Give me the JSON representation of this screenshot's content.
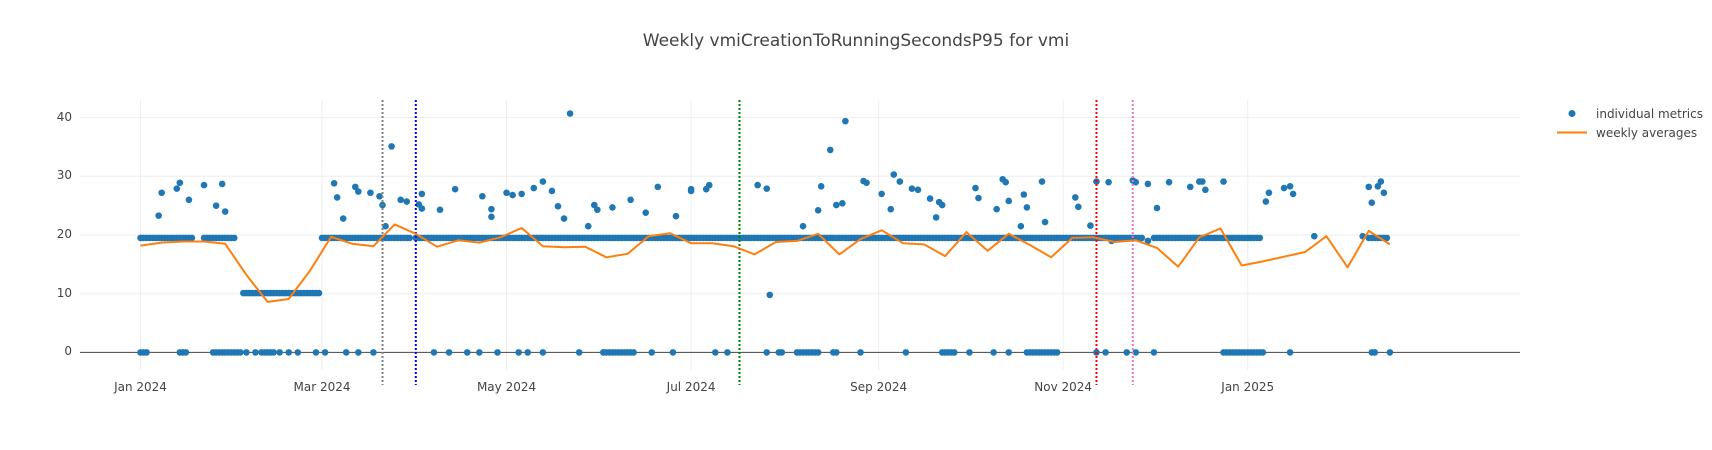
{
  "chart_data": {
    "type": "scatter",
    "title": "Weekly vmiCreationToRunningSecondsP95 for vmi",
    "xlabel": "",
    "ylabel": "",
    "xlim": [
      "2023-12-12",
      "2025-04-01"
    ],
    "ylim": [
      -3,
      43
    ],
    "grid": true,
    "legend_position": "top-right",
    "x_ticks": [
      "2024-01-01",
      "2024-03-01",
      "2024-05-01",
      "2024-07-01",
      "2024-09-01",
      "2024-11-01",
      "2025-01-01"
    ],
    "x_tick_labels": [
      "Jan 2024",
      "Mar 2024",
      "May 2024",
      "Jul 2024",
      "Sep 2024",
      "Nov 2024",
      "Jan 2025"
    ],
    "y_ticks": [
      0,
      10,
      20,
      30,
      40
    ],
    "y_tick_labels": [
      "0",
      "10",
      "20",
      "30",
      "40"
    ],
    "vertical_lines": [
      {
        "x": "2024-03-21",
        "color": "#7f7f7f"
      },
      {
        "x": "2024-04-01",
        "color": "#0000ff"
      },
      {
        "x": "2024-07-17",
        "color": "#008000"
      },
      {
        "x": "2024-11-12",
        "color": "#ff0000"
      },
      {
        "x": "2024-11-24",
        "color": "#e377c2"
      }
    ],
    "series": [
      {
        "name": "individual metrics",
        "kind": "markers",
        "color": "#1f77b4",
        "bands": [
          {
            "y": 19.5,
            "ranges": [
              [
                "2024-01-01",
                "2024-01-18"
              ],
              [
                "2024-01-22",
                "2024-02-01"
              ],
              [
                "2024-03-01",
                "2024-03-30"
              ],
              [
                "2024-04-01",
                "2024-11-27"
              ],
              [
                "2024-12-01",
                "2025-01-05"
              ],
              [
                "2025-02-10",
                "2025-02-16"
              ]
            ]
          },
          {
            "y": 10.1,
            "ranges": [
              [
                "2024-02-04",
                "2024-02-29"
              ]
            ]
          },
          {
            "y": 0.0,
            "ranges": [
              [
                "2024-01-01",
                "2024-01-03"
              ],
              [
                "2024-01-14",
                "2024-01-16"
              ],
              [
                "2024-01-25",
                "2024-02-03"
              ],
              [
                "2024-02-10",
                "2024-02-14"
              ],
              [
                "2024-06-02",
                "2024-06-12"
              ],
              [
                "2024-08-05",
                "2024-08-12"
              ],
              [
                "2024-09-22",
                "2024-09-26"
              ],
              [
                "2024-10-20",
                "2024-10-30"
              ],
              [
                "2024-12-24",
                "2025-01-06"
              ]
            ]
          }
        ],
        "points": [
          [
            "2024-01-07",
            23.3
          ],
          [
            "2024-01-08",
            27.2
          ],
          [
            "2024-01-13",
            27.9
          ],
          [
            "2024-01-14",
            28.9
          ],
          [
            "2024-01-17",
            26.0
          ],
          [
            "2024-01-22",
            28.5
          ],
          [
            "2024-01-26",
            25.0
          ],
          [
            "2024-01-28",
            28.7
          ],
          [
            "2024-01-29",
            24.0
          ],
          [
            "2024-02-05",
            0.0
          ],
          [
            "2024-02-08",
            0.0
          ],
          [
            "2024-02-16",
            0.0
          ],
          [
            "2024-02-19",
            0.0
          ],
          [
            "2024-02-22",
            0.0
          ],
          [
            "2024-02-28",
            0.0
          ],
          [
            "2024-03-02",
            0.0
          ],
          [
            "2024-03-09",
            0.0
          ],
          [
            "2024-03-13",
            0.0
          ],
          [
            "2024-03-18",
            0.0
          ],
          [
            "2024-03-05",
            28.8
          ],
          [
            "2024-03-06",
            26.4
          ],
          [
            "2024-03-08",
            22.8
          ],
          [
            "2024-03-12",
            28.2
          ],
          [
            "2024-03-13",
            27.4
          ],
          [
            "2024-03-17",
            27.2
          ],
          [
            "2024-03-20",
            26.6
          ],
          [
            "2024-03-21",
            25.1
          ],
          [
            "2024-03-22",
            21.5
          ],
          [
            "2024-03-24",
            35.1
          ],
          [
            "2024-03-27",
            26.0
          ],
          [
            "2024-03-29",
            25.7
          ],
          [
            "2024-04-02",
            25.2
          ],
          [
            "2024-04-03",
            24.5
          ],
          [
            "2024-04-03",
            27.0
          ],
          [
            "2024-04-09",
            24.3
          ],
          [
            "2024-04-14",
            27.8
          ],
          [
            "2024-04-23",
            26.6
          ],
          [
            "2024-04-26",
            23.1
          ],
          [
            "2024-04-26",
            24.4
          ],
          [
            "2024-05-01",
            27.2
          ],
          [
            "2024-05-03",
            26.8
          ],
          [
            "2024-05-06",
            27.0
          ],
          [
            "2024-05-10",
            28.0
          ],
          [
            "2024-05-13",
            29.1
          ],
          [
            "2024-05-16",
            27.5
          ],
          [
            "2024-05-18",
            24.9
          ],
          [
            "2024-05-20",
            22.8
          ],
          [
            "2024-05-22",
            40.7
          ],
          [
            "2024-05-28",
            21.5
          ],
          [
            "2024-05-30",
            25.1
          ],
          [
            "2024-05-31",
            24.3
          ],
          [
            "2024-06-05",
            24.7
          ],
          [
            "2024-06-11",
            26.0
          ],
          [
            "2024-06-16",
            23.8
          ],
          [
            "2024-06-20",
            28.2
          ],
          [
            "2024-06-26",
            23.2
          ],
          [
            "2024-07-01",
            27.5
          ],
          [
            "2024-07-01",
            27.8
          ],
          [
            "2024-07-06",
            27.8
          ],
          [
            "2024-07-07",
            28.5
          ],
          [
            "2024-07-23",
            28.5
          ],
          [
            "2024-07-26",
            27.9
          ],
          [
            "2024-07-27",
            9.8
          ],
          [
            "2024-08-07",
            21.5
          ],
          [
            "2024-08-12",
            24.2
          ],
          [
            "2024-08-13",
            28.3
          ],
          [
            "2024-08-16",
            34.5
          ],
          [
            "2024-08-18",
            25.1
          ],
          [
            "2024-08-20",
            25.4
          ],
          [
            "2024-08-21",
            39.4
          ],
          [
            "2024-08-27",
            29.2
          ],
          [
            "2024-08-28",
            28.9
          ],
          [
            "2024-09-02",
            27.0
          ],
          [
            "2024-09-05",
            24.4
          ],
          [
            "2024-09-06",
            30.3
          ],
          [
            "2024-09-08",
            29.1
          ],
          [
            "2024-09-12",
            27.9
          ],
          [
            "2024-09-14",
            27.7
          ],
          [
            "2024-09-18",
            26.2
          ],
          [
            "2024-09-20",
            23.0
          ],
          [
            "2024-09-21",
            25.6
          ],
          [
            "2024-09-22",
            25.1
          ],
          [
            "2024-10-03",
            28.0
          ],
          [
            "2024-10-04",
            26.3
          ],
          [
            "2024-10-10",
            24.4
          ],
          [
            "2024-10-12",
            29.5
          ],
          [
            "2024-10-13",
            29.0
          ],
          [
            "2024-10-14",
            25.8
          ],
          [
            "2024-10-18",
            21.5
          ],
          [
            "2024-10-19",
            26.9
          ],
          [
            "2024-10-20",
            24.7
          ],
          [
            "2024-10-25",
            29.1
          ],
          [
            "2024-10-26",
            22.2
          ],
          [
            "2024-11-05",
            26.4
          ],
          [
            "2024-11-06",
            24.8
          ],
          [
            "2024-11-10",
            21.6
          ],
          [
            "2024-11-12",
            29.1
          ],
          [
            "2024-11-16",
            29.0
          ],
          [
            "2024-11-24",
            29.3
          ],
          [
            "2024-11-25",
            29.0
          ],
          [
            "2024-11-29",
            28.7
          ],
          [
            "2024-12-02",
            24.6
          ],
          [
            "2024-12-06",
            29.0
          ],
          [
            "2024-12-13",
            28.2
          ],
          [
            "2024-12-16",
            29.1
          ],
          [
            "2024-12-17",
            29.1
          ],
          [
            "2024-12-18",
            27.7
          ],
          [
            "2024-12-24",
            29.1
          ],
          [
            "2025-01-07",
            25.7
          ],
          [
            "2025-01-08",
            27.2
          ],
          [
            "2025-01-13",
            28.0
          ],
          [
            "2025-01-15",
            28.3
          ],
          [
            "2025-01-16",
            27.0
          ],
          [
            "2025-02-10",
            28.2
          ],
          [
            "2025-02-11",
            25.5
          ],
          [
            "2025-02-13",
            28.3
          ],
          [
            "2025-02-14",
            29.1
          ],
          [
            "2025-02-15",
            27.2
          ],
          [
            "2025-02-08",
            19.8
          ],
          [
            "2024-11-17",
            19.0
          ],
          [
            "2024-11-29",
            19.0
          ],
          [
            "2025-01-23",
            19.8
          ],
          [
            "2024-04-07",
            0.0
          ],
          [
            "2024-04-12",
            0.0
          ],
          [
            "2024-04-18",
            0.0
          ],
          [
            "2024-04-22",
            0.0
          ],
          [
            "2024-04-28",
            0.0
          ],
          [
            "2024-05-05",
            0.0
          ],
          [
            "2024-05-08",
            0.0
          ],
          [
            "2024-05-13",
            0.0
          ],
          [
            "2024-05-25",
            0.0
          ],
          [
            "2024-06-02",
            0.0
          ],
          [
            "2024-06-18",
            0.0
          ],
          [
            "2024-06-25",
            0.0
          ],
          [
            "2024-07-09",
            0.0
          ],
          [
            "2024-07-13",
            0.0
          ],
          [
            "2024-07-26",
            0.0
          ],
          [
            "2024-07-30",
            0.0
          ],
          [
            "2024-07-31",
            0.0
          ],
          [
            "2024-08-17",
            0.0
          ],
          [
            "2024-08-18",
            0.0
          ],
          [
            "2024-08-26",
            0.0
          ],
          [
            "2024-09-10",
            0.0
          ],
          [
            "2024-10-01",
            0.0
          ],
          [
            "2024-10-09",
            0.0
          ],
          [
            "2024-10-14",
            0.0
          ],
          [
            "2024-11-12",
            0.0
          ],
          [
            "2024-11-15",
            0.0
          ],
          [
            "2024-11-22",
            0.0
          ],
          [
            "2024-11-25",
            0.0
          ],
          [
            "2024-12-01",
            0.0
          ],
          [
            "2025-01-15",
            0.0
          ],
          [
            "2025-02-11",
            0.0
          ],
          [
            "2025-02-12",
            0.0
          ],
          [
            "2025-02-17",
            0.0
          ]
        ]
      },
      {
        "name": "weekly averages",
        "kind": "line",
        "color": "#ff7f0e",
        "x": [
          "2024-01-01",
          "2024-01-08",
          "2024-01-15",
          "2024-01-22",
          "2024-01-29",
          "2024-02-05",
          "2024-02-12",
          "2024-02-19",
          "2024-02-26",
          "2024-03-04",
          "2024-03-11",
          "2024-03-18",
          "2024-03-25",
          "2024-04-01",
          "2024-04-08",
          "2024-04-15",
          "2024-04-22",
          "2024-04-29",
          "2024-05-06",
          "2024-05-13",
          "2024-05-20",
          "2024-05-27",
          "2024-06-03",
          "2024-06-10",
          "2024-06-17",
          "2024-06-24",
          "2024-07-01",
          "2024-07-08",
          "2024-07-15",
          "2024-07-22",
          "2024-07-29",
          "2024-08-05",
          "2024-08-12",
          "2024-08-19",
          "2024-08-26",
          "2024-09-02",
          "2024-09-09",
          "2024-09-16",
          "2024-09-23",
          "2024-09-30",
          "2024-10-07",
          "2024-10-14",
          "2024-10-21",
          "2024-10-28",
          "2024-11-04",
          "2024-11-11",
          "2024-11-18",
          "2024-11-25",
          "2024-12-02",
          "2024-12-09",
          "2024-12-16",
          "2024-12-23",
          "2024-12-30",
          "2025-01-06",
          "2025-01-13",
          "2025-01-20",
          "2025-01-27",
          "2025-02-03",
          "2025-02-10",
          "2025-02-17"
        ],
        "y": [
          18.2,
          18.7,
          18.9,
          18.9,
          18.5,
          13.2,
          8.6,
          9.1,
          13.9,
          19.7,
          18.5,
          18.1,
          21.8,
          20.2,
          18.0,
          19.1,
          18.7,
          19.6,
          21.2,
          18.1,
          17.9,
          18.0,
          16.2,
          16.8,
          19.8,
          20.3,
          18.6,
          18.6,
          18.1,
          16.7,
          18.8,
          19.0,
          20.2,
          16.7,
          19.3,
          20.8,
          18.6,
          18.4,
          16.4,
          20.5,
          17.3,
          20.2,
          18.3,
          16.2,
          19.5,
          19.6,
          18.8,
          19.1,
          17.8,
          14.6,
          19.6,
          21.1,
          14.8,
          15.5,
          16.3,
          17.1,
          19.8,
          14.5,
          20.7,
          18.4
        ]
      }
    ]
  }
}
